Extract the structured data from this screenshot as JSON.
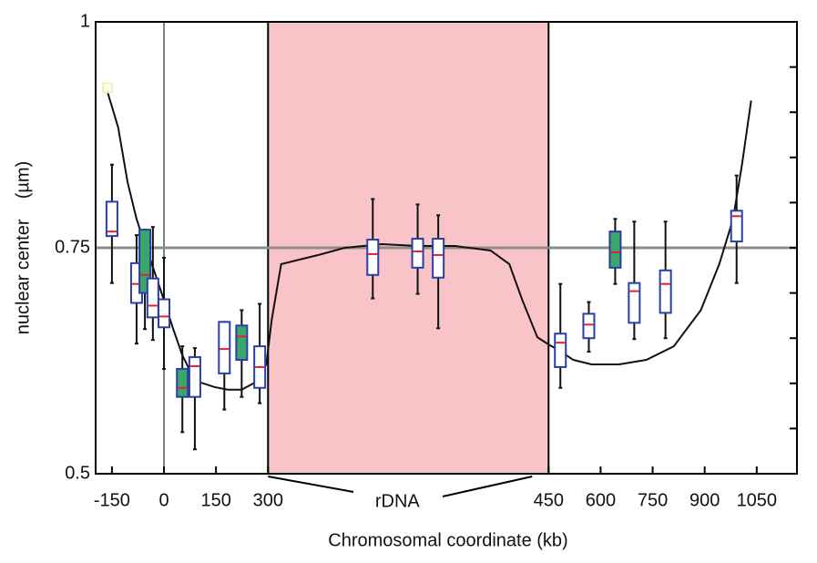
{
  "chart_data": {
    "type": "box",
    "xlabel": "Chromosomal coordinate (kb)",
    "ylabel": "nuclear center    (µm)",
    "xlim": [
      -197,
      1166
    ],
    "ylim": [
      0.5,
      1
    ],
    "xticks": [
      -150,
      0,
      150,
      300,
      450,
      600,
      750,
      900,
      1050
    ],
    "yticks": [
      0.5,
      0.75,
      1
    ],
    "minor_yticks": [
      0.55,
      0.6,
      0.65,
      0.7,
      0.8,
      0.85,
      0.9,
      0.95
    ],
    "region": {
      "label": "rDNA",
      "range": [
        300,
        450
      ],
      "color": "#f8c4c8"
    },
    "hline": {
      "value": 0.75,
      "color": "#8c8c8c"
    },
    "vline": {
      "value": 0,
      "color": "#000000"
    },
    "box_color": "#2a3ea8",
    "median_color": "#e8202a",
    "boxes": [
      {
        "x": -150,
        "whislo": 0.711,
        "q1": 0.763,
        "med": 0.768,
        "q3": 0.801,
        "whishi": 0.842,
        "color": "#ffffff"
      },
      {
        "x": -79,
        "whislo": 0.644,
        "q1": 0.689,
        "med": 0.71,
        "q3": 0.733,
        "whishi": 0.764,
        "color": "#ffffff"
      },
      {
        "x": -55,
        "whislo": 0.66,
        "q1": 0.7,
        "med": 0.72,
        "q3": 0.77,
        "whishi": 0.77,
        "color": "#3aa66b"
      },
      {
        "x": -32,
        "whislo": 0.648,
        "q1": 0.673,
        "med": 0.686,
        "q3": 0.716,
        "whishi": 0.773,
        "color": "#ffffff"
      },
      {
        "x": 0,
        "whislo": 0.616,
        "q1": 0.662,
        "med": 0.674,
        "q3": 0.693,
        "whishi": 0.739,
        "color": "#ffffff"
      },
      {
        "x": 53,
        "whislo": 0.546,
        "q1": 0.585,
        "med": 0.595,
        "q3": 0.616,
        "whishi": 0.641,
        "color": "#3aa66b"
      },
      {
        "x": 89,
        "whislo": 0.527,
        "q1": 0.585,
        "med": 0.619,
        "q3": 0.629,
        "whishi": 0.639,
        "color": "#ffffff"
      },
      {
        "x": 174,
        "whislo": 0.571,
        "q1": 0.611,
        "med": 0.638,
        "q3": 0.668,
        "whishi": 0.668,
        "color": "#ffffff"
      },
      {
        "x": 224,
        "whislo": 0.585,
        "q1": 0.626,
        "med": 0.652,
        "q3": 0.664,
        "whishi": 0.681,
        "color": "#3aa66b"
      },
      {
        "x": 276,
        "whislo": 0.578,
        "q1": 0.595,
        "med": 0.618,
        "q3": 0.641,
        "whishi": 0.688,
        "color": "#ffffff"
      },
      {
        "x": 356,
        "whislo": 0.694,
        "q1": 0.72,
        "med": 0.743,
        "q3": 0.759,
        "whishi": 0.804,
        "color": "#ffffff"
      },
      {
        "x": 380,
        "whislo": 0.699,
        "q1": 0.728,
        "med": 0.746,
        "q3": 0.76,
        "whishi": 0.798,
        "color": "#ffffff"
      },
      {
        "x": 391,
        "whislo": 0.661,
        "q1": 0.717,
        "med": 0.742,
        "q3": 0.76,
        "whishi": 0.786,
        "color": "#ffffff"
      },
      {
        "x": 484,
        "whislo": 0.595,
        "q1": 0.618,
        "med": 0.645,
        "q3": 0.655,
        "whishi": 0.71,
        "color": "#ffffff"
      },
      {
        "x": 566,
        "whislo": 0.635,
        "q1": 0.65,
        "med": 0.665,
        "q3": 0.677,
        "whishi": 0.69,
        "color": "#ffffff"
      },
      {
        "x": 642,
        "whislo": 0.71,
        "q1": 0.728,
        "med": 0.745,
        "q3": 0.768,
        "whishi": 0.782,
        "color": "#3aa66b"
      },
      {
        "x": 697,
        "whislo": 0.649,
        "q1": 0.667,
        "med": 0.702,
        "q3": 0.711,
        "whishi": 0.779,
        "color": "#ffffff"
      },
      {
        "x": 787,
        "whislo": 0.65,
        "q1": 0.678,
        "med": 0.71,
        "q3": 0.725,
        "whishi": 0.779,
        "color": "#ffffff"
      },
      {
        "x": 992,
        "whislo": 0.711,
        "q1": 0.757,
        "med": 0.785,
        "q3": 0.791,
        "whishi": 0.83,
        "color": "#ffffff"
      }
    ],
    "line": {
      "color": "#111111",
      "x": [
        -163,
        -132,
        -105,
        -79,
        -53,
        -26,
        0,
        26,
        53,
        79,
        105,
        145,
        184,
        224,
        263,
        295,
        302,
        307,
        317,
        327,
        341,
        361,
        380,
        400,
        419,
        429,
        436,
        444,
        450,
        482,
        521,
        574,
        653,
        732,
        811,
        889,
        942,
        982,
        1008,
        1034
      ],
      "values": [
        0.923,
        0.883,
        0.823,
        0.782,
        0.752,
        0.722,
        0.692,
        0.661,
        0.631,
        0.611,
        0.601,
        0.596,
        0.593,
        0.593,
        0.601,
        0.621,
        0.671,
        0.732,
        0.737,
        0.742,
        0.75,
        0.754,
        0.752,
        0.752,
        0.747,
        0.732,
        0.692,
        0.651,
        0.643,
        0.636,
        0.626,
        0.621,
        0.621,
        0.626,
        0.641,
        0.681,
        0.732,
        0.782,
        0.843,
        0.913
      ]
    },
    "marker": {
      "x": -163,
      "y": 0.927,
      "color": "#f4f0b0"
    }
  }
}
